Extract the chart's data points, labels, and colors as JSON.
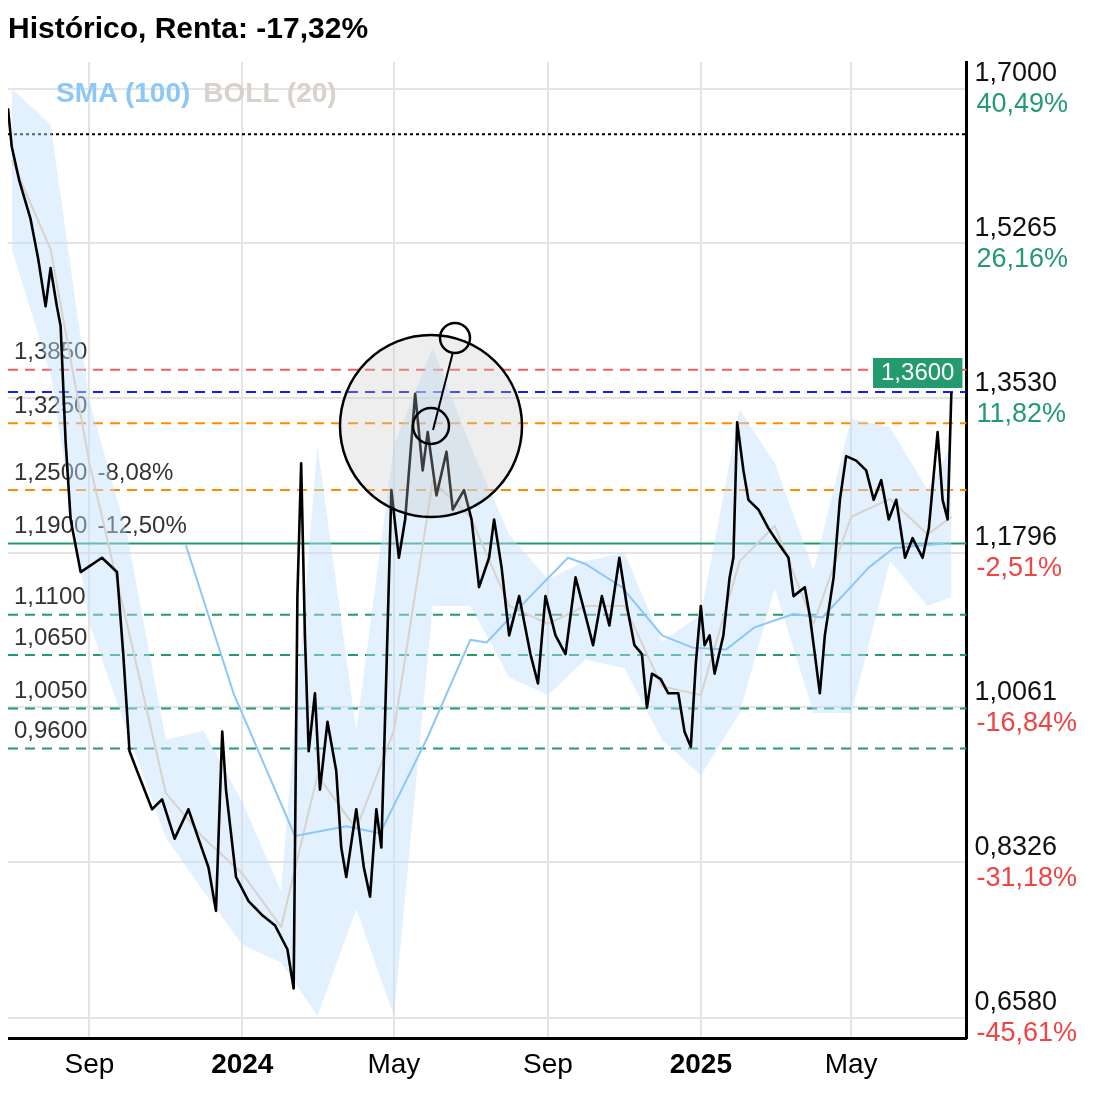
{
  "chart_data": {
    "type": "line",
    "title": "Histórico, Renta: -17,32%",
    "xlim": [
      "2023-06-28",
      "2025-08-01"
    ],
    "xticks": [
      {
        "value": "2023-09-01",
        "label": "Sep"
      },
      {
        "value": "2024-01-01",
        "label": "2024"
      },
      {
        "value": "2024-05-01",
        "label": "May"
      },
      {
        "value": "2024-09-01",
        "label": "Sep"
      },
      {
        "value": "2025-01-01",
        "label": "2025"
      },
      {
        "value": "2025-05-01",
        "label": "May"
      }
    ],
    "ylim": [
      0.635,
      1.73
    ],
    "yticks": [
      {
        "value": 1.7,
        "label": "1,7000"
      },
      {
        "value": 1.5265,
        "label": "1,5265"
      },
      {
        "value": 1.353,
        "label": "1,3530"
      },
      {
        "value": 1.1796,
        "label": "1,1796"
      },
      {
        "value": 1.0061,
        "label": "1,0061"
      },
      {
        "value": 0.8326,
        "label": "0,8326"
      },
      {
        "value": 0.658,
        "label": "0,6580"
      }
    ],
    "y2lim": [
      -47.52,
      42.97
    ],
    "y2ticks": [
      {
        "value": 40.49,
        "label": "40,49%"
      },
      {
        "value": 26.16,
        "label": "26,16%"
      },
      {
        "value": 11.82,
        "label": "11,82%"
      },
      {
        "value": -2.51,
        "label": "-2,51%"
      },
      {
        "value": -16.84,
        "label": "-16,84%"
      },
      {
        "value": -31.18,
        "label": "-31,18%"
      },
      {
        "value": -45.61,
        "label": "-45,61%"
      }
    ],
    "annotations": [
      {
        "text": "-8,08%",
        "y": 1.25
      },
      {
        "text": "-12,50%",
        "y": 1.19
      }
    ],
    "grid": true,
    "legend": "top left",
    "series": [
      {
        "color": "#000000",
        "x": [
          "2023-06-28",
          "2023-07-01",
          "2023-07-07",
          "2023-07-16",
          "2023-07-22",
          "2023-07-28",
          "2023-08-01",
          "2023-08-06",
          "2023-08-09",
          "2023-08-13",
          "2023-08-17",
          "2023-08-25",
          "2023-09-11",
          "2023-09-23",
          "2023-09-28",
          "2023-10-03",
          "2023-10-09",
          "2023-10-21",
          "2023-10-29",
          "2023-11-08",
          "2023-11-19",
          "2023-11-27",
          "2023-12-05",
          "2023-12-11",
          "2023-12-16",
          "2023-12-19",
          "2023-12-27",
          "2024-01-06",
          "2024-01-17",
          "2024-01-27",
          "2024-02-06",
          "2024-02-11",
          "2024-02-14",
          "2024-02-17",
          "2024-02-20",
          "2024-02-23",
          "2024-02-28",
          "2024-03-03",
          "2024-03-09",
          "2024-03-16",
          "2024-03-20",
          "2024-03-24",
          "2024-04-01",
          "2024-04-07",
          "2024-04-12",
          "2024-04-17",
          "2024-04-21",
          "2024-04-25",
          "2024-04-29",
          "2024-05-05",
          "2024-05-10",
          "2024-05-18",
          "2024-05-24",
          "2024-05-28",
          "2024-06-04",
          "2024-06-12",
          "2024-06-17",
          "2024-06-26",
          "2024-07-02",
          "2024-07-08",
          "2024-07-16",
          "2024-07-20",
          "2024-07-26",
          "2024-08-01",
          "2024-08-09",
          "2024-08-18",
          "2024-08-24",
          "2024-08-30",
          "2024-09-07",
          "2024-09-15",
          "2024-09-23",
          "2024-10-01",
          "2024-10-07",
          "2024-10-14",
          "2024-10-20",
          "2024-10-28",
          "2024-11-03",
          "2024-11-09",
          "2024-11-15",
          "2024-11-19",
          "2024-11-23",
          "2024-11-30",
          "2024-12-06",
          "2024-12-14",
          "2024-12-19",
          "2024-12-24",
          "2024-12-28",
          "2025-01-01",
          "2025-01-04",
          "2025-01-08",
          "2025-01-12",
          "2025-01-19",
          "2025-01-24",
          "2025-01-27",
          "2025-01-30",
          "2025-02-04",
          "2025-02-08",
          "2025-02-16",
          "2025-02-24",
          "2025-03-04",
          "2025-03-12",
          "2025-03-16",
          "2025-03-25",
          "2025-03-29",
          "2025-04-02",
          "2025-04-06",
          "2025-04-10",
          "2025-04-17",
          "2025-04-22",
          "2025-04-27",
          "2025-05-05",
          "2025-05-13",
          "2025-05-19",
          "2025-05-25",
          "2025-05-31",
          "2025-06-06",
          "2025-06-13",
          "2025-06-19",
          "2025-06-27",
          "2025-07-02",
          "2025-07-09",
          "2025-07-13",
          "2025-07-17",
          "2025-07-20"
        ],
        "values": [
          1.678,
          1.635,
          1.597,
          1.554,
          1.51,
          1.456,
          1.499,
          1.456,
          1.434,
          1.304,
          1.217,
          1.158,
          1.174,
          1.158,
          1.066,
          0.957,
          0.935,
          0.892,
          0.903,
          0.859,
          0.892,
          0.859,
          0.827,
          0.778,
          0.979,
          0.914,
          0.816,
          0.789,
          0.773,
          0.762,
          0.735,
          0.691,
          1.131,
          1.28,
          1.087,
          0.957,
          1.022,
          0.914,
          0.99,
          0.935,
          0.849,
          0.816,
          0.892,
          0.827,
          0.794,
          0.892,
          0.849,
          1.044,
          1.25,
          1.174,
          1.217,
          1.358,
          1.272,
          1.315,
          1.244,
          1.293,
          1.228,
          1.25,
          1.217,
          1.141,
          1.174,
          1.217,
          1.163,
          1.087,
          1.131,
          1.066,
          1.033,
          1.131,
          1.087,
          1.066,
          1.152,
          1.109,
          1.076,
          1.131,
          1.098,
          1.174,
          1.12,
          1.076,
          1.066,
          1.006,
          1.044,
          1.038,
          1.022,
          1.022,
          0.979,
          0.962,
          1.055,
          1.12,
          1.076,
          1.087,
          1.044,
          1.087,
          1.152,
          1.174,
          1.326,
          1.272,
          1.239,
          1.228,
          1.207,
          1.19,
          1.174,
          1.131,
          1.141,
          1.109,
          1.066,
          1.022,
          1.087,
          1.152,
          1.239,
          1.288,
          1.283,
          1.272,
          1.239,
          1.261,
          1.217,
          1.239,
          1.174,
          1.196,
          1.174,
          1.207,
          1.315,
          1.239,
          1.217,
          1.36
        ]
      },
      {
        "name": "SMA (100)",
        "color": "#8cc8f5",
        "x": [
          "2023-11-17",
          "2023-12-25",
          "2024-02-12",
          "2024-03-24",
          "2024-04-20",
          "2024-05-28",
          "2024-07-01",
          "2024-07-14",
          "2024-08-18",
          "2024-09-17",
          "2024-10-01",
          "2024-10-30",
          "2024-12-01",
          "2024-12-26",
          "2025-01-21",
          "2025-02-13",
          "2025-03-16",
          "2025-04-08",
          "2025-05-15",
          "2025-06-04",
          "2025-07-14"
        ],
        "values": [
          1.188,
          1.022,
          0.862,
          0.873,
          0.865,
          0.973,
          1.082,
          1.079,
          1.131,
          1.174,
          1.167,
          1.141,
          1.087,
          1.073,
          1.071,
          1.096,
          1.111,
          1.107,
          1.163,
          1.185,
          1.19
        ]
      },
      {
        "name": "BOLL (20)",
        "color": "#d8d2cc",
        "x": [
          "2023-07-01",
          "2023-08-01",
          "2023-09-01",
          "2023-10-01",
          "2023-11-01",
          "2023-12-01",
          "2024-01-01",
          "2024-02-01",
          "2024-03-01",
          "2024-04-01",
          "2024-05-01",
          "2024-06-01",
          "2024-07-01",
          "2024-08-01",
          "2024-09-01",
          "2024-10-01",
          "2024-11-01",
          "2024-12-01",
          "2025-01-01",
          "2025-02-01",
          "2025-03-01",
          "2025-04-01",
          "2025-05-01",
          "2025-06-01",
          "2025-07-01",
          "2025-07-20"
        ],
        "values": [
          1.62,
          1.52,
          1.28,
          1.1,
          0.91,
          0.86,
          0.82,
          0.76,
          0.93,
          0.87,
          0.98,
          1.26,
          1.22,
          1.12,
          1.1,
          1.12,
          1.12,
          1.03,
          1.02,
          1.17,
          1.21,
          1.1,
          1.22,
          1.24,
          1.2,
          1.22
        ],
        "lower": [
          1.52,
          1.38,
          1.1,
          0.98,
          0.86,
          0.8,
          0.74,
          0.72,
          0.66,
          0.78,
          0.66,
          1.12,
          1.12,
          1.04,
          1.02,
          1.06,
          1.05,
          0.97,
          0.93,
          1.0,
          1.14,
          1.0,
          1.0,
          1.17,
          1.12,
          1.13
        ],
        "upper": [
          1.7,
          1.66,
          1.35,
          1.2,
          0.97,
          0.98,
          0.9,
          0.8,
          1.3,
          0.98,
          1.3,
          1.41,
          1.3,
          1.2,
          1.15,
          1.17,
          1.18,
          1.08,
          1.11,
          1.34,
          1.28,
          1.16,
          1.33,
          1.32,
          1.25,
          1.3
        ]
      }
    ],
    "ref_lines": [
      {
        "axis": "y",
        "value": 1.649,
        "color": "#000000",
        "line_style": "dotted"
      },
      {
        "axis": "y",
        "value": 1.385,
        "label": "1,3850",
        "color": "#f06060",
        "line_style": "dashed"
      },
      {
        "axis": "y",
        "value": 1.36,
        "label": "1,3600",
        "color": "#1a1aff",
        "line_style": "dashed"
      },
      {
        "axis": "y",
        "value": 1.325,
        "label": "1,3250",
        "color": "#ff8c00",
        "line_style": "dashed"
      },
      {
        "axis": "y",
        "value": 1.25,
        "label": "1,2500",
        "color": "#ff8c00",
        "line_style": "dashed"
      },
      {
        "axis": "y",
        "value": 1.19,
        "label": "1,1900",
        "color": "#239b6e",
        "line_style": "solid"
      },
      {
        "axis": "y",
        "value": 1.11,
        "label": "1,1100",
        "color": "#239b6e",
        "line_style": "dashed"
      },
      {
        "axis": "y",
        "value": 1.065,
        "label": "1,0650",
        "color": "#239b6e",
        "line_style": "dashed"
      },
      {
        "axis": "y",
        "value": 1.005,
        "label": "1,0050",
        "color": "#239b6e",
        "line_style": "dashed"
      },
      {
        "axis": "y",
        "value": 0.96,
        "label": "0,9600",
        "color": "#239b6e",
        "line_style": "dashed"
      }
    ]
  }
}
